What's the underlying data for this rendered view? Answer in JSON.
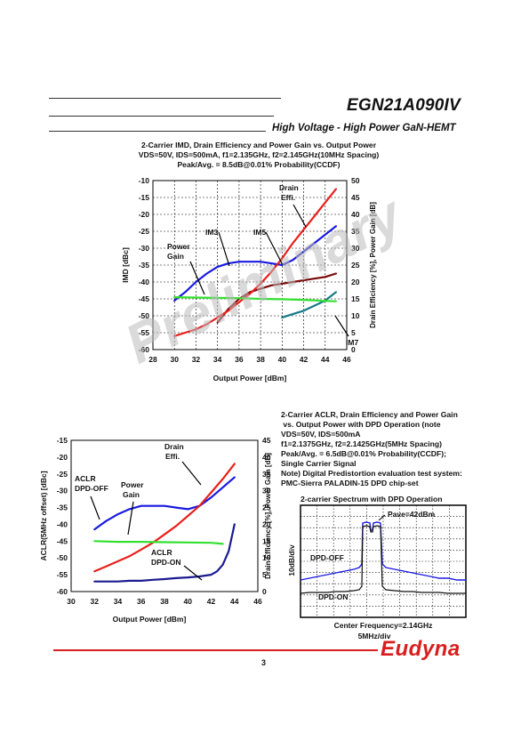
{
  "header": {
    "part_number": "EGN21A090IV",
    "subtitle": "High Voltage  - High Power GaN-HEMT"
  },
  "watermark": "Preliminary",
  "chart_data": [
    {
      "type": "line",
      "title_lines": [
        "2-Carrier IMD, Drain Efficiency and Power Gain vs. Output Power",
        "VDS=50V, IDS=500mA, f1=2.135GHz, f2=2.145GHz(10MHz Spacing)",
        "Peak/Avg. = 8.5dB@0.01% Probability(CCDF)"
      ],
      "xlabel": "Output Power [dBm]",
      "ylabel": "IMD [dBc]",
      "y2label": "Drain Efficiency [%], Power Gain [dB]",
      "xlim": [
        28,
        46
      ],
      "ylim": [
        -60,
        -10
      ],
      "y2lim": [
        0,
        50
      ],
      "x_ticks": [
        "28",
        "30",
        "32",
        "34",
        "36",
        "38",
        "40",
        "42",
        "44",
        "46"
      ],
      "y_ticks": [
        "-10",
        "-15",
        "-20",
        "-25",
        "-30",
        "-35",
        "-40",
        "-45",
        "-50",
        "-55",
        "-60"
      ],
      "y2_ticks": [
        "50",
        "45",
        "40",
        "35",
        "30",
        "25",
        "20",
        "15",
        "10",
        "5",
        "0"
      ],
      "grid": true,
      "series": [
        {
          "name": "IM3",
          "axis": "left",
          "color": "#1a1ae0",
          "x": [
            30,
            31,
            32,
            33,
            34,
            35,
            36,
            37,
            38,
            39,
            40,
            41,
            42,
            43,
            44,
            45
          ],
          "y": [
            -45.5,
            -43,
            -40,
            -37.5,
            -35.5,
            -34.5,
            -34,
            -34,
            -34,
            -34.5,
            -35,
            -33.5,
            -31,
            -28.5,
            -26,
            -23.5
          ]
        },
        {
          "name": "IM5",
          "axis": "left",
          "color": "#7a0a0a",
          "x": [
            34,
            35,
            36,
            37,
            38,
            39,
            40,
            41,
            42,
            43,
            44,
            45
          ],
          "y": [
            -52,
            -48,
            -45,
            -43,
            -42,
            -41,
            -40.5,
            -40,
            -39.5,
            -39,
            -38.5,
            -37.5
          ]
        },
        {
          "name": "IM7",
          "axis": "left",
          "color": "#177a88",
          "x": [
            40,
            41,
            42,
            43,
            44,
            45
          ],
          "y": [
            -50.5,
            -49.5,
            -48.5,
            -47,
            -45.5,
            -43
          ]
        },
        {
          "name": "Drain Effi.",
          "axis": "right",
          "color": "#e8201c",
          "x": [
            30,
            31,
            32,
            33,
            34,
            35,
            36,
            37,
            38,
            39,
            40,
            41,
            42,
            43,
            44,
            45
          ],
          "y": [
            4,
            5,
            6,
            7.5,
            9.5,
            11.5,
            14,
            16.5,
            19.5,
            23,
            27,
            31.5,
            35.5,
            39.5,
            43.5,
            47.5
          ]
        },
        {
          "name": "Power Gain",
          "axis": "right",
          "color": "#33e030",
          "x": [
            30,
            32,
            34,
            36,
            38,
            40,
            42,
            44,
            45
          ],
          "y": [
            15.5,
            15.4,
            15.3,
            15.2,
            15.0,
            14.9,
            14.7,
            14.4,
            14.3
          ]
        }
      ],
      "annotations": [
        "Drain\nEffi.",
        "IM3",
        "IM5",
        "Power\nGain",
        "IM7"
      ]
    },
    {
      "type": "line",
      "title_lines": [
        "2-Carrier ACLR, Drain Efficiency and Power Gain",
        " vs. Output Power with DPD Operation (note",
        "VDS=50V, IDS=500mA",
        "f1=2.1375GHz, f2=2.1425GHz(5MHz Spacing)",
        "Peak/Avg. = 6.5dB@0.01% Probability(CCDF);",
        "Single Carrier Signal",
        "Note) Digital Predistortion evaluation test system:",
        "PMC-Sierra PALADIN-15 DPD chip-set"
      ],
      "xlabel": "Output Power [dBm]",
      "ylabel": "ACLR(5MHz offset)  [dBc]",
      "y2label": "Drain Efficiency [%], Power Gain [dB]",
      "xlim": [
        30,
        46
      ],
      "ylim": [
        -60,
        -15
      ],
      "y2lim": [
        0,
        45
      ],
      "x_ticks": [
        "30",
        "32",
        "34",
        "36",
        "38",
        "40",
        "42",
        "44",
        "46"
      ],
      "y_ticks": [
        "-15",
        "-20",
        "-25",
        "-30",
        "-35",
        "-40",
        "-45",
        "-50",
        "-55",
        "-60"
      ],
      "y2_ticks": [
        "45",
        "40",
        "35",
        "30",
        "25",
        "20",
        "15",
        "10",
        "5",
        "0"
      ],
      "grid": false,
      "series": [
        {
          "name": "ACLR DPD-OFF",
          "axis": "left",
          "color": "#1a1ae0",
          "x": [
            32,
            33,
            34,
            35,
            36,
            37,
            38,
            39,
            40,
            41,
            42,
            43,
            44
          ],
          "y": [
            -41.5,
            -39,
            -37,
            -35.5,
            -34.5,
            -34.5,
            -34.5,
            -35,
            -35.5,
            -34.5,
            -32,
            -29,
            -26
          ]
        },
        {
          "name": "ACLR DPD-ON",
          "axis": "left",
          "color": "#1a1a90",
          "x": [
            32,
            33,
            34,
            35,
            36,
            37,
            38,
            39,
            40,
            41,
            42,
            42.5,
            43,
            43.5,
            44
          ],
          "y": [
            -57,
            -57,
            -57,
            -56.8,
            -56.8,
            -56.5,
            -56.3,
            -56,
            -55.8,
            -55.5,
            -55,
            -54,
            -52,
            -48,
            -40
          ]
        },
        {
          "name": "Drain Effi.",
          "axis": "right",
          "color": "#e8201c",
          "x": [
            32,
            33,
            34,
            35,
            36,
            37,
            38,
            39,
            40,
            41,
            42,
            43,
            44
          ],
          "y": [
            6,
            7.5,
            9,
            10.5,
            12.5,
            14.5,
            17,
            19.5,
            22.5,
            25.5,
            29.5,
            33.5,
            38
          ]
        },
        {
          "name": "Power Gain",
          "axis": "right",
          "color": "#33e030",
          "x": [
            32,
            34,
            36,
            38,
            40,
            42,
            43
          ],
          "y": [
            15,
            14.8,
            14.8,
            14.7,
            14.6,
            14.5,
            14.2
          ]
        }
      ],
      "annotations": [
        "Drain\nEffi.",
        "ACLR\nDPD-OFF",
        "Power\nGain",
        "ACLR\nDPD-ON"
      ]
    }
  ],
  "spectrum": {
    "title": "2-carrier Spectrum with DPD Operation",
    "pave_label": "Pave=42dBm",
    "ylabel": "10dB/div",
    "dpd_off_label": "DPD-OFF",
    "dpd_on_label": "DPD-ON",
    "center_label": "Center Frequency=2.14GHz",
    "div_label": "5MHz/div"
  },
  "footer": {
    "brand": "Eudyna",
    "page_number": "3"
  }
}
